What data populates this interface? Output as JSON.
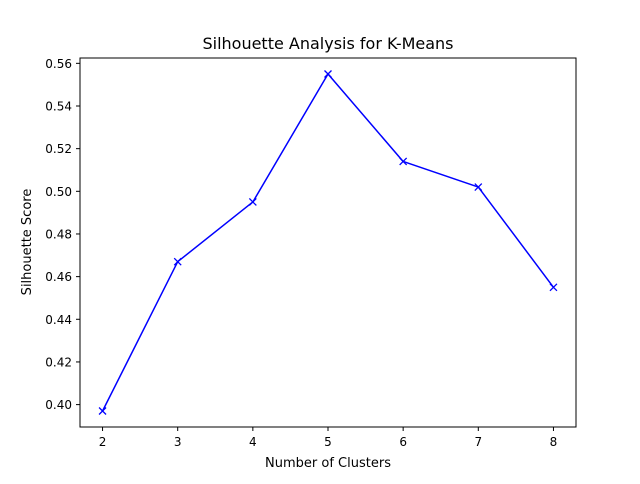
{
  "chart_data": {
    "type": "line",
    "title": "Silhouette Analysis for K-Means",
    "xlabel": "Number of Clusters",
    "ylabel": "Silhouette Score",
    "x": [
      2,
      3,
      4,
      5,
      6,
      7,
      8
    ],
    "series": [
      {
        "values": [
          0.397,
          0.467,
          0.495,
          0.555,
          0.514,
          0.502,
          0.455
        ],
        "color": "#0000ff",
        "marker": "x"
      }
    ],
    "xlim": [
      1.7,
      8.3
    ],
    "ylim": [
      0.3895,
      0.5625
    ],
    "xticks": [
      2,
      3,
      4,
      5,
      6,
      7,
      8
    ],
    "xtick_labels": [
      "2",
      "3",
      "4",
      "5",
      "6",
      "7",
      "8"
    ],
    "yticks": [
      0.4,
      0.42,
      0.44,
      0.46,
      0.48,
      0.5,
      0.52,
      0.54,
      0.56
    ],
    "ytick_labels": [
      "0.40",
      "0.42",
      "0.44",
      "0.46",
      "0.48",
      "0.50",
      "0.52",
      "0.54",
      "0.56"
    ],
    "grid": false,
    "legend": "none"
  }
}
